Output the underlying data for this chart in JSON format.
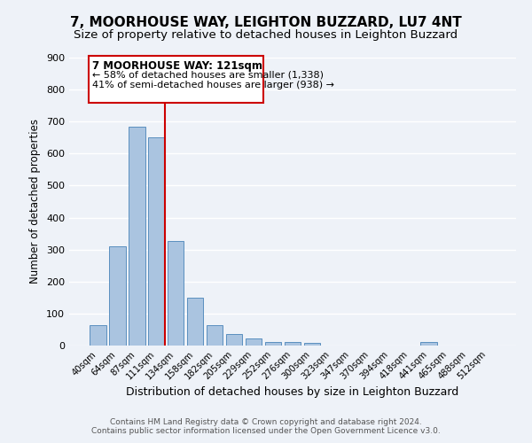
{
  "title": "7, MOORHOUSE WAY, LEIGHTON BUZZARD, LU7 4NT",
  "subtitle": "Size of property relative to detached houses in Leighton Buzzard",
  "xlabel": "Distribution of detached houses by size in Leighton Buzzard",
  "ylabel": "Number of detached properties",
  "bar_labels": [
    "40sqm",
    "64sqm",
    "87sqm",
    "111sqm",
    "134sqm",
    "158sqm",
    "182sqm",
    "205sqm",
    "229sqm",
    "252sqm",
    "276sqm",
    "300sqm",
    "323sqm",
    "347sqm",
    "370sqm",
    "394sqm",
    "418sqm",
    "441sqm",
    "465sqm",
    "488sqm",
    "512sqm"
  ],
  "bar_values": [
    65,
    310,
    685,
    650,
    328,
    150,
    65,
    35,
    22,
    12,
    12,
    8,
    0,
    0,
    0,
    0,
    0,
    10,
    0,
    0,
    0
  ],
  "bar_color": "#aac4e0",
  "bar_edge_color": "#5a8fbf",
  "ylim": [
    0,
    900
  ],
  "yticks": [
    0,
    100,
    200,
    300,
    400,
    500,
    600,
    700,
    800,
    900
  ],
  "vline_color": "#cc0000",
  "annotation_title": "7 MOORHOUSE WAY: 121sqm",
  "annotation_line1": "← 58% of detached houses are smaller (1,338)",
  "annotation_line2": "41% of semi-detached houses are larger (938) →",
  "annotation_box_color": "#cc0000",
  "footer_line1": "Contains HM Land Registry data © Crown copyright and database right 2024.",
  "footer_line2": "Contains public sector information licensed under the Open Government Licence v3.0.",
  "background_color": "#eef2f8",
  "grid_color": "#ffffff",
  "title_fontsize": 11,
  "subtitle_fontsize": 9.5
}
